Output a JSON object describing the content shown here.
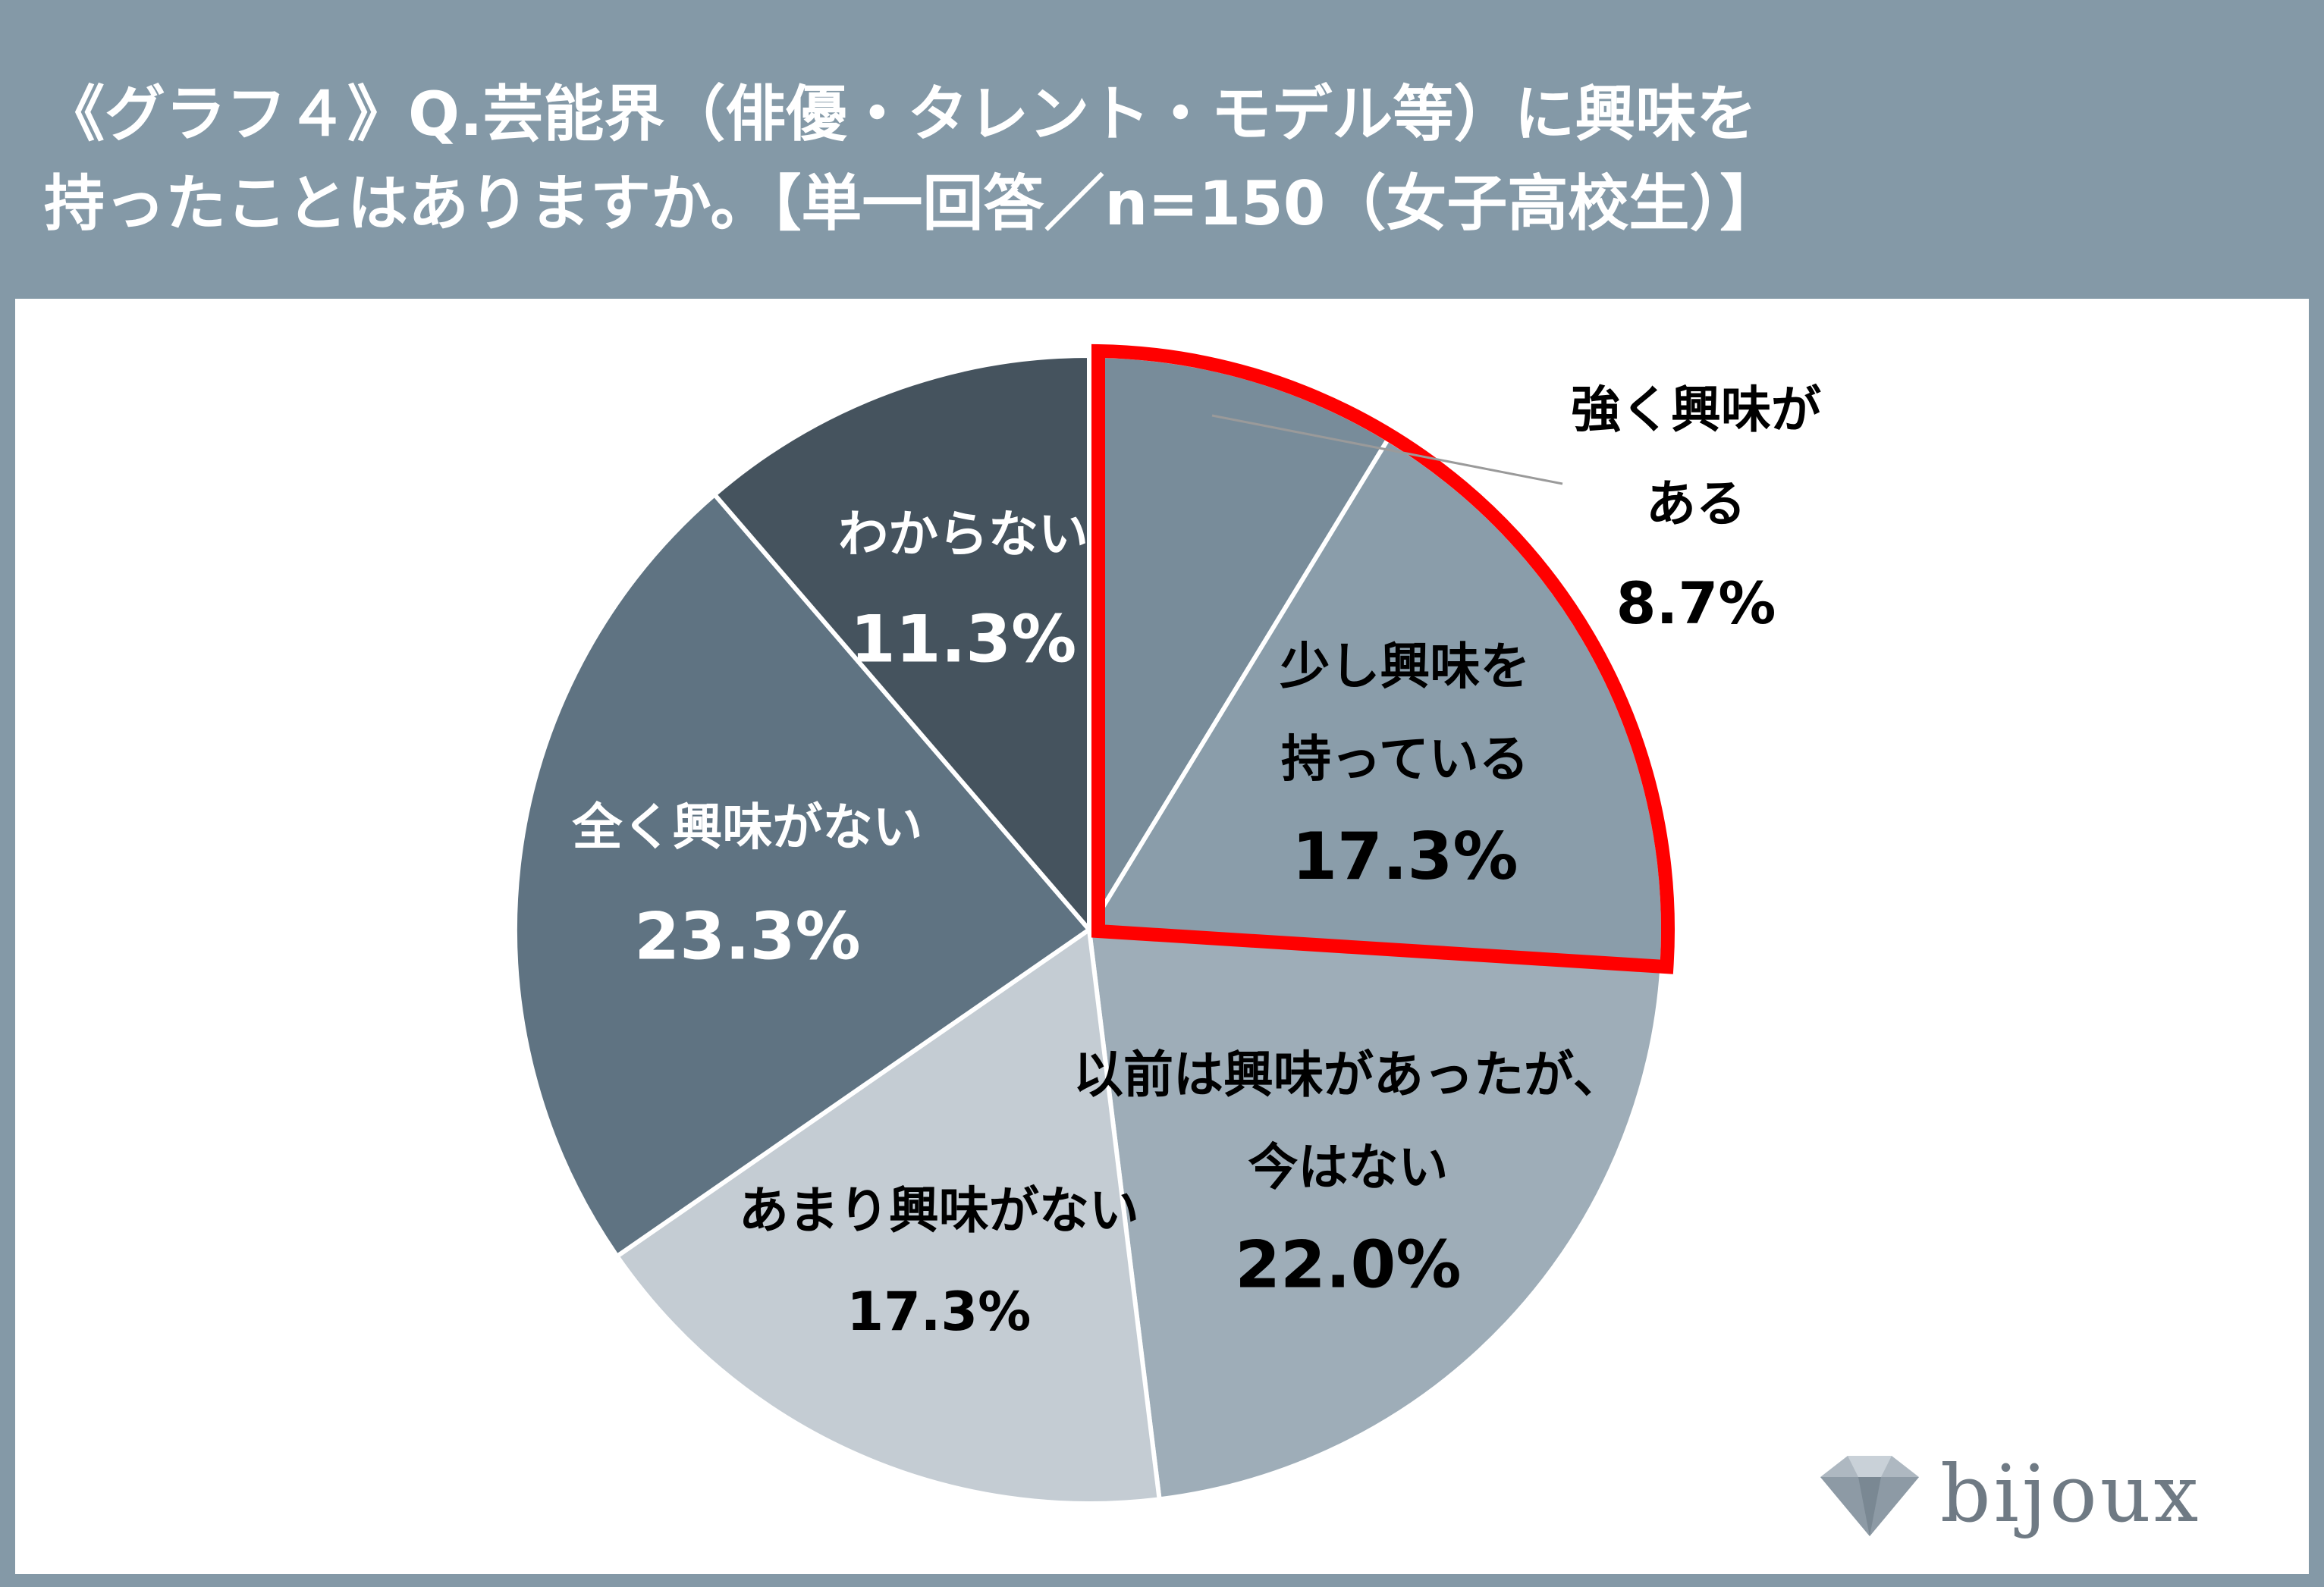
{
  "title_lines": [
    "《グラフ４》Q.芸能界（俳優・タレント・モデル等）に興味を",
    "持ったことはありますか。【単一回答／n=150（女子高校生）】"
  ],
  "chart_data": {
    "type": "pie",
    "title": "《グラフ４》Q.芸能界（俳優・タレント・モデル等）に興味を持ったことはありますか。【単一回答／n=150（女子高校生）】",
    "start_angle_deg": 0,
    "direction": "clockwise",
    "slices": [
      {
        "label_lines": [
          "強く興味が",
          "ある"
        ],
        "value": 8.7,
        "value_label": "8.7%",
        "color": "#788c9a",
        "text_color": "#000000",
        "label_position": "outside-right"
      },
      {
        "label_lines": [
          "少し興味を",
          "持っている"
        ],
        "value": 17.3,
        "value_label": "17.3%",
        "color": "#8a9daa",
        "text_color": "#000000"
      },
      {
        "label_lines": [
          "以前は興味があったが、",
          "今はない"
        ],
        "value": 22.0,
        "value_label": "22.0%",
        "color": "#9eadb8",
        "text_color": "#000000"
      },
      {
        "label_lines": [
          "あまり興味がない"
        ],
        "value": 17.3,
        "value_label": "17.3%",
        "color": "#c4ccd3",
        "text_color": "#000000"
      },
      {
        "label_lines": [
          "全く興味がない"
        ],
        "value": 23.3,
        "value_label": "23.3%",
        "color": "#5f7382",
        "text_color": "#ffffff"
      },
      {
        "label_lines": [
          "わからない"
        ],
        "value": 11.3,
        "value_label": "11.3%",
        "color": "#45535e",
        "text_color": "#ffffff"
      }
    ],
    "highlight": {
      "slices": [
        0,
        1
      ],
      "color": "#ff0000"
    }
  },
  "logo": {
    "text": "bijoux",
    "color": "#6f7a84"
  }
}
